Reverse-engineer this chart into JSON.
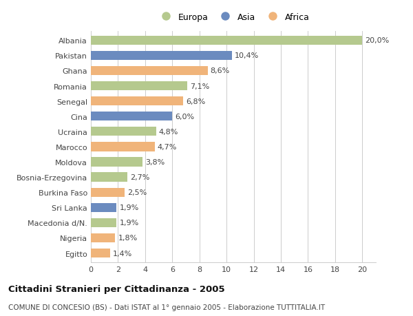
{
  "categories": [
    "Albania",
    "Pakistan",
    "Ghana",
    "Romania",
    "Senegal",
    "Cina",
    "Ucraina",
    "Marocco",
    "Moldova",
    "Bosnia-Erzegovina",
    "Burkina Faso",
    "Sri Lanka",
    "Macedonia d/N.",
    "Nigeria",
    "Egitto"
  ],
  "values": [
    20.0,
    10.4,
    8.6,
    7.1,
    6.8,
    6.0,
    4.8,
    4.7,
    3.8,
    2.7,
    2.5,
    1.9,
    1.9,
    1.8,
    1.4
  ],
  "continents": [
    "Europa",
    "Asia",
    "Africa",
    "Europa",
    "Africa",
    "Asia",
    "Europa",
    "Africa",
    "Europa",
    "Europa",
    "Africa",
    "Asia",
    "Europa",
    "Africa",
    "Africa"
  ],
  "labels": [
    "20,0%",
    "10,4%",
    "8,6%",
    "7,1%",
    "6,8%",
    "6,0%",
    "4,8%",
    "4,7%",
    "3,8%",
    "2,7%",
    "2,5%",
    "1,9%",
    "1,9%",
    "1,8%",
    "1,4%"
  ],
  "colors": {
    "Europa": "#b5c98e",
    "Asia": "#6b8bbf",
    "Africa": "#f0b47a"
  },
  "legend_order": [
    "Europa",
    "Asia",
    "Africa"
  ],
  "xlim": [
    0,
    21
  ],
  "xticks": [
    0,
    2,
    4,
    6,
    8,
    10,
    12,
    14,
    16,
    18,
    20
  ],
  "title_bold": "Cittadini Stranieri per Cittadinanza - 2005",
  "subtitle": "COMUNE DI CONCESIO (BS) - Dati ISTAT al 1° gennaio 2005 - Elaborazione TUTTITALIA.IT",
  "bg_color": "#ffffff",
  "grid_color": "#cccccc",
  "bar_height": 0.6,
  "label_fontsize": 8,
  "tick_fontsize": 8,
  "title_fontsize": 9.5,
  "subtitle_fontsize": 7.5,
  "legend_fontsize": 9
}
